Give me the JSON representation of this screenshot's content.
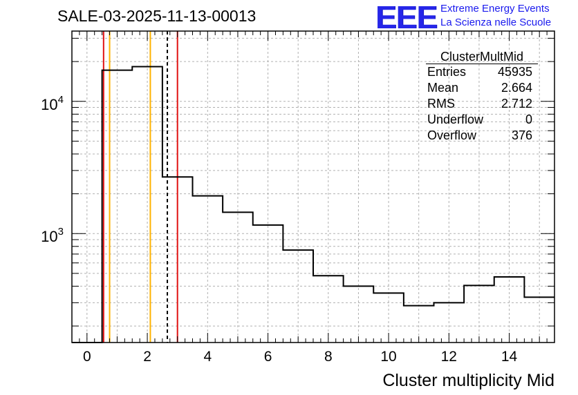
{
  "title": "SALE-03-2025-11-13-00013",
  "logo": {
    "mark": "EEE",
    "line1": "Extreme Energy Events",
    "line2": "La Scienza nelle Scuole"
  },
  "stats_box": {
    "name": "ClusterMultMid",
    "rows": [
      {
        "label": "Entries",
        "value": "45935"
      },
      {
        "label": "Mean",
        "value": "2.664"
      },
      {
        "label": "RMS",
        "value": "2.712"
      },
      {
        "label": "Underflow",
        "value": "0"
      },
      {
        "label": "Overflow",
        "value": "376"
      }
    ]
  },
  "chart_data": {
    "type": "histogram",
    "scale": "log-y",
    "title": "SALE-03-2025-11-13-00013",
    "xlabel": "Cluster multiplicity Mid",
    "ylabel": "",
    "xlim": [
      -0.5,
      15.5
    ],
    "ylim": [
      150,
      34000
    ],
    "grid": true,
    "x_ticks": [
      0,
      2,
      4,
      6,
      8,
      10,
      12,
      14
    ],
    "x_tick_labels": [
      "0",
      "2",
      "4",
      "6",
      "8",
      "10",
      "12",
      "14"
    ],
    "y_ticks": [
      1000,
      10000
    ],
    "y_tick_labels": [
      {
        "base": "10",
        "exp": "3"
      },
      {
        "base": "10",
        "exp": "4"
      }
    ],
    "bin_width": 1,
    "bins": [
      {
        "center": 0,
        "value": 0
      },
      {
        "center": 1,
        "value": 17200
      },
      {
        "center": 2,
        "value": 18300
      },
      {
        "center": 3,
        "value": 2680
      },
      {
        "center": 4,
        "value": 1930
      },
      {
        "center": 5,
        "value": 1450
      },
      {
        "center": 6,
        "value": 1160
      },
      {
        "center": 7,
        "value": 750
      },
      {
        "center": 8,
        "value": 480
      },
      {
        "center": 9,
        "value": 400
      },
      {
        "center": 10,
        "value": 355
      },
      {
        "center": 11,
        "value": 285
      },
      {
        "center": 12,
        "value": 300
      },
      {
        "center": 13,
        "value": 405
      },
      {
        "center": 14,
        "value": 470
      },
      {
        "center": 15,
        "value": 330
      }
    ],
    "vertical_lines": [
      {
        "name": "mean-line",
        "x": 2.664,
        "color": "#000000",
        "style": "dashed"
      },
      {
        "name": "orange-line-left",
        "x": 0.75,
        "color": "#ffb300",
        "style": "solid"
      },
      {
        "name": "orange-line-right",
        "x": 2.1,
        "color": "#ffb300",
        "style": "solid"
      },
      {
        "name": "red-line-left",
        "x": 0.55,
        "color": "#e01010",
        "style": "solid"
      },
      {
        "name": "red-line-right",
        "x": 3.0,
        "color": "#e01010",
        "style": "solid"
      }
    ]
  }
}
